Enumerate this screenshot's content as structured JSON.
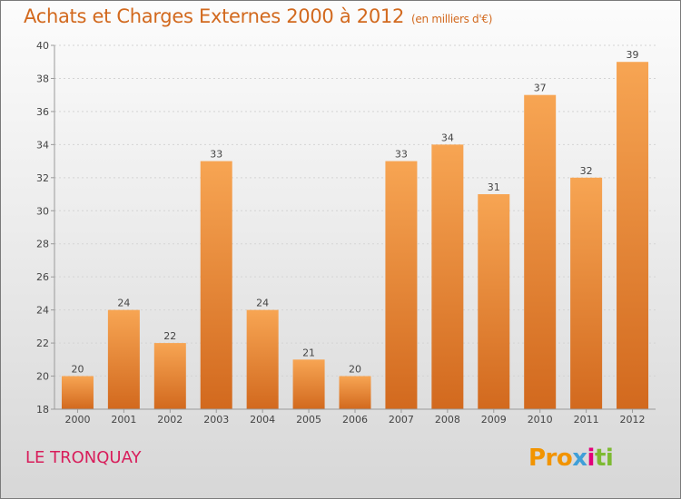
{
  "header": {
    "title": "Achats et Charges Externes 2000 à 2012",
    "subtitle": "(en milliers d'€)"
  },
  "footer": {
    "commune": "LE TRONQUAY",
    "logo_parts": [
      "Pro",
      "x",
      "i",
      "ti"
    ]
  },
  "colors": {
    "bar_top": "#f7a553",
    "bar_bottom": "#d2691e",
    "title": "#d2691e",
    "commune": "#d81e5b"
  },
  "chart_data": {
    "type": "bar",
    "title": "Achats et Charges Externes 2000 à 2012",
    "xlabel": "",
    "ylabel": "",
    "categories": [
      "2000",
      "2001",
      "2002",
      "2003",
      "2004",
      "2005",
      "2006",
      "2007",
      "2008",
      "2009",
      "2010",
      "2011",
      "2012"
    ],
    "values": [
      20,
      24,
      22,
      33,
      24,
      21,
      20,
      33,
      34,
      31,
      37,
      32,
      39
    ],
    "ylim": [
      18,
      40
    ],
    "yticks": [
      18,
      20,
      22,
      24,
      26,
      28,
      30,
      32,
      34,
      36,
      38,
      40
    ],
    "grid": true,
    "data_labels": true
  }
}
